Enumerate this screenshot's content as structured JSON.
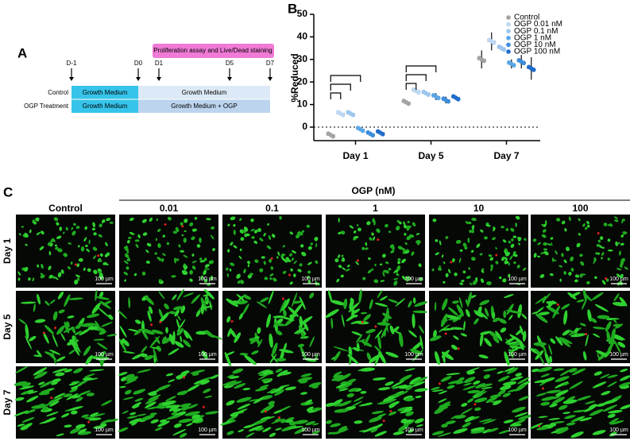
{
  "panel_a": {
    "label": "A",
    "banner": "Proliferation assay and Live/Dead staining",
    "timepoints": [
      "D-1",
      "D0",
      "D1",
      "D5",
      "D7"
    ],
    "rows": [
      {
        "label": "Control",
        "phase1": "Growth Medium",
        "phase2": "Growth Medium"
      },
      {
        "label": "OGP Treatment",
        "phase1": "Growth Medium",
        "phase2": "Growth Medium + OGP"
      }
    ]
  },
  "chart_data": {
    "label": "B",
    "type": "dot",
    "y_label": "%Reduced",
    "categories": [
      "Day 1",
      "Day 5",
      "Day 7"
    ],
    "series": [
      {
        "name": "Control",
        "color": "#a3a3a3",
        "values": [
          -3.5,
          11,
          30
        ],
        "errors": [
          0.4,
          0.3,
          4
        ]
      },
      {
        "name": "OGP 0.01 nM",
        "color": "#bcd8f2",
        "values": [
          6,
          16,
          38
        ],
        "errors": [
          0.5,
          0.6,
          4
        ]
      },
      {
        "name": "OGP 0.1 nM",
        "color": "#9cc6ee",
        "values": [
          6,
          15,
          35
        ],
        "errors": [
          0.6,
          0.8,
          1
        ]
      },
      {
        "name": "OGP 1 nM",
        "color": "#5aa7e6",
        "values": [
          -1,
          13.5,
          28
        ],
        "errors": [
          0.5,
          1.5,
          2
        ]
      },
      {
        "name": "OGP 10 nM",
        "color": "#3d8ddb",
        "values": [
          -3,
          12,
          29
        ],
        "errors": [
          0.8,
          1.5,
          3
        ]
      },
      {
        "name": "OGP 100 nM",
        "color": "#1f6ccc",
        "values": [
          -2.5,
          13,
          26
        ],
        "errors": [
          0.8,
          0.5,
          5
        ]
      }
    ],
    "ylim": [
      -6,
      50
    ],
    "yticks": [
      0,
      10,
      20,
      30,
      40,
      50
    ],
    "reference_line": 0
  },
  "panel_c": {
    "label": "C",
    "group_label": "OGP (nM)",
    "columns": [
      "Control",
      "0.01",
      "0.1",
      "1",
      "10",
      "100"
    ],
    "rows": [
      "Day 1",
      "Day 5",
      "Day 7"
    ],
    "scale_bar": "100 µm"
  }
}
